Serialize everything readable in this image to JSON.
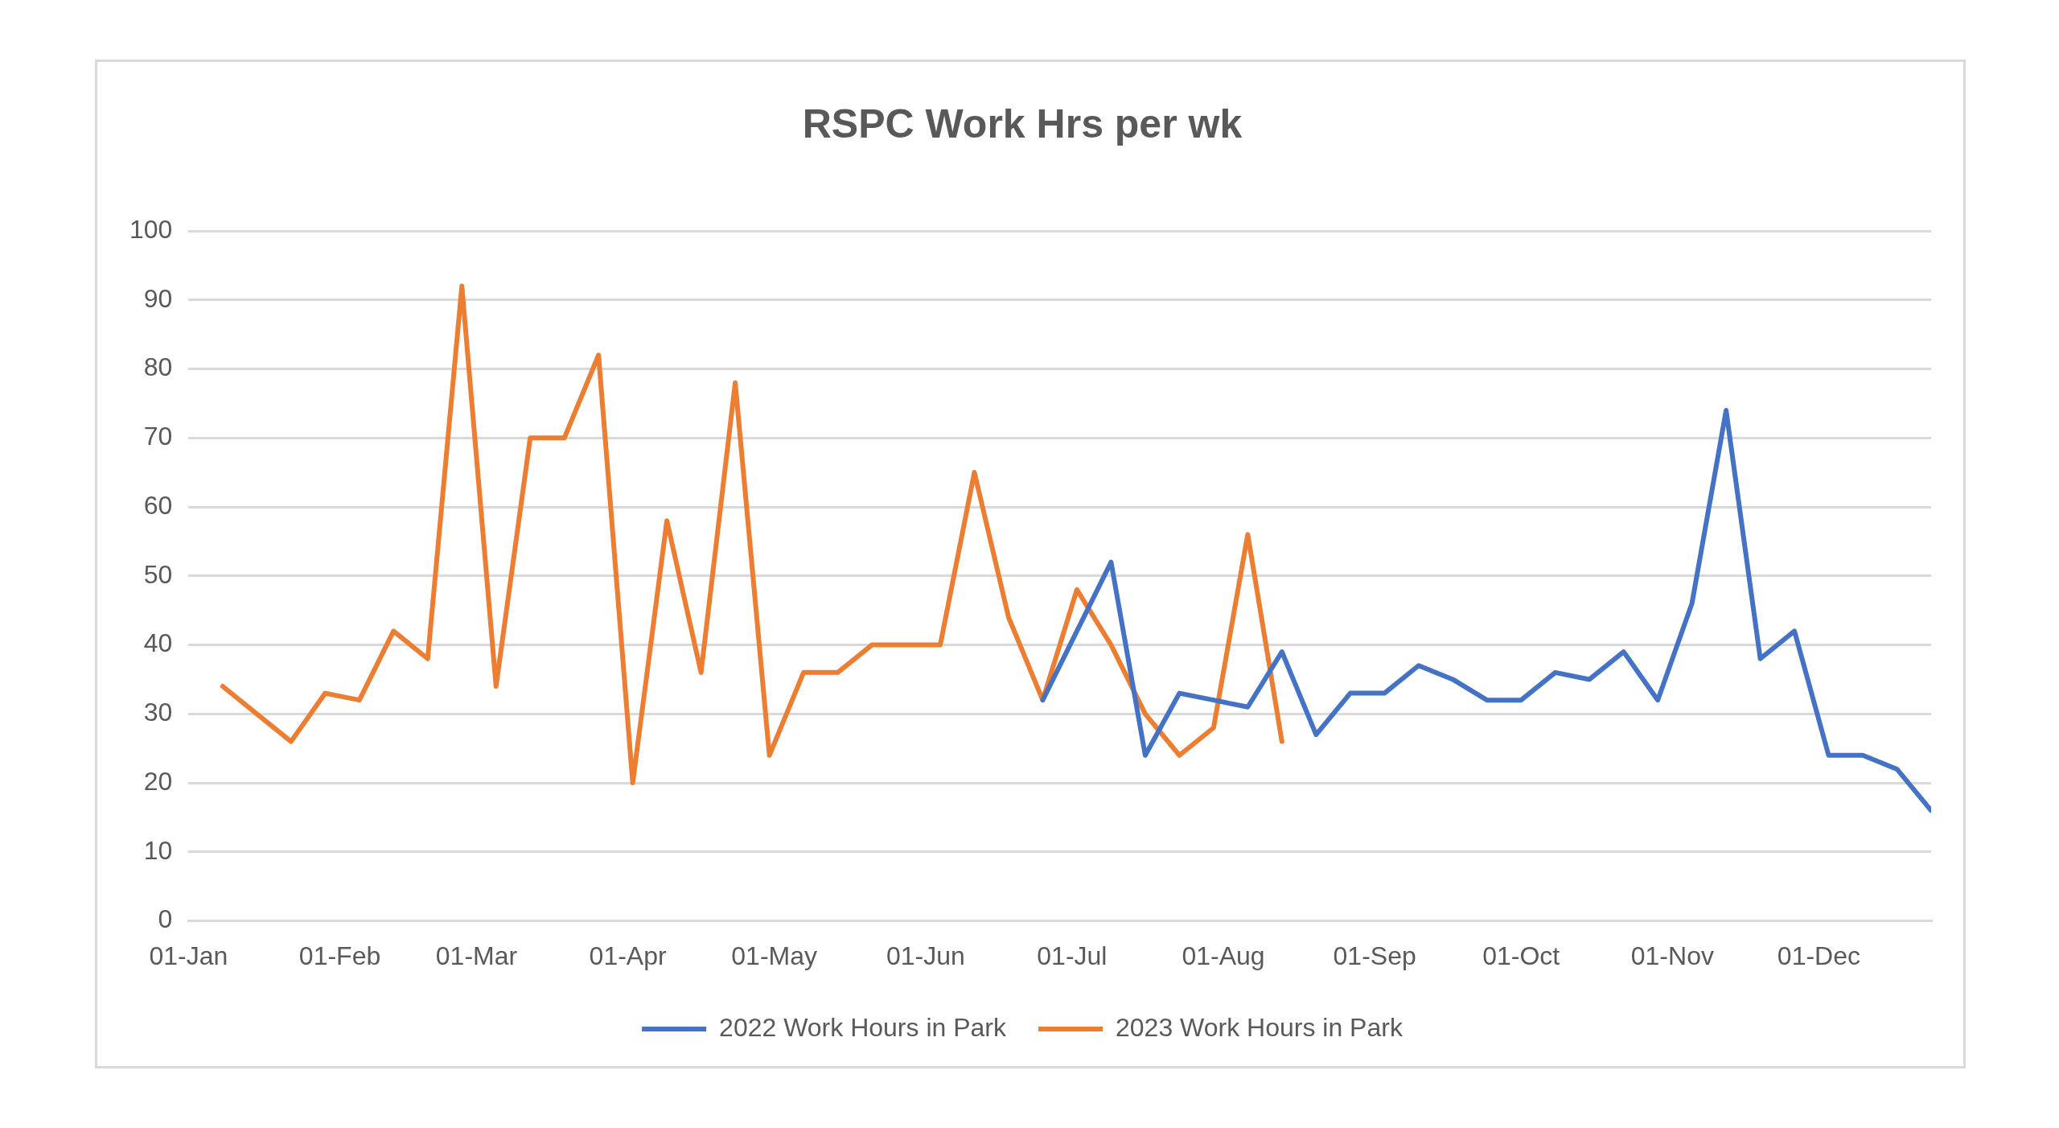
{
  "chart_data": {
    "type": "line",
    "title": "RSPC Work Hrs per wk",
    "x": [
      "--01-08",
      "--01-15",
      "--01-22",
      "--01-29",
      "--02-05",
      "--02-12",
      "--02-19",
      "--02-26",
      "--03-05",
      "--03-12",
      "--03-19",
      "--03-26",
      "--04-02",
      "--04-09",
      "--04-16",
      "--04-23",
      "--04-30",
      "--05-07",
      "--05-14",
      "--05-21",
      "--05-28",
      "--06-04",
      "--06-11",
      "--06-18",
      "--06-25",
      "--07-02",
      "--07-09",
      "--07-16",
      "--07-23",
      "--07-30",
      "--08-06",
      "--08-13"
    ],
    "series": [
      {
        "name": "2022 Work Hours in Park",
        "color": "#4472c4",
        "x": [
          "--06-25",
          "--07-02",
          "--07-09",
          "--07-16",
          "--07-23",
          "--07-30",
          "--08-06",
          "--08-13",
          "--08-20",
          "--08-27",
          "--09-03",
          "--09-10",
          "--09-17",
          "--09-24",
          "--10-01",
          "--10-08",
          "--10-15",
          "--10-22",
          "--10-29",
          "--11-05",
          "--11-12",
          "--11-19",
          "--11-26",
          "--12-03",
          "--12-10",
          "--12-17",
          "--12-24"
        ],
        "values": [
          32,
          42,
          52,
          24,
          33,
          32,
          31,
          39,
          27,
          33,
          33,
          37,
          35,
          32,
          32,
          36,
          35,
          39,
          32,
          46,
          74,
          38,
          42,
          24,
          24,
          22,
          16
        ]
      },
      {
        "name": "2023 Work Hours in Park",
        "color": "#ed7d31",
        "values": [
          34,
          30,
          26,
          33,
          32,
          42,
          38,
          92,
          34,
          70,
          70,
          82,
          20,
          58,
          36,
          78,
          24,
          36,
          36,
          40,
          40,
          40,
          65,
          44,
          32,
          48,
          40,
          30,
          24,
          28,
          56,
          26
        ]
      }
    ],
    "xlim": [
      "--01-01",
      "--12-24"
    ],
    "xticks": [
      {
        "value": "--01-01",
        "label": "01-Jan"
      },
      {
        "value": "--02-01",
        "label": "01-Feb"
      },
      {
        "value": "--03-01",
        "label": "01-Mar"
      },
      {
        "value": "--04-01",
        "label": "01-Apr"
      },
      {
        "value": "--05-01",
        "label": "01-May"
      },
      {
        "value": "--06-01",
        "label": "01-Jun"
      },
      {
        "value": "--07-01",
        "label": "01-Jul"
      },
      {
        "value": "--08-01",
        "label": "01-Aug"
      },
      {
        "value": "--09-01",
        "label": "01-Sep"
      },
      {
        "value": "--10-01",
        "label": "01-Oct"
      },
      {
        "value": "--11-01",
        "label": "01-Nov"
      },
      {
        "value": "--12-01",
        "label": "01-Dec"
      }
    ],
    "ylim": [
      0,
      100
    ],
    "yticks": [
      0,
      10,
      20,
      30,
      40,
      50,
      60,
      70,
      80,
      90,
      100
    ],
    "grid": "y",
    "legend": "bottom",
    "marker": "none",
    "line_style": "solid"
  }
}
